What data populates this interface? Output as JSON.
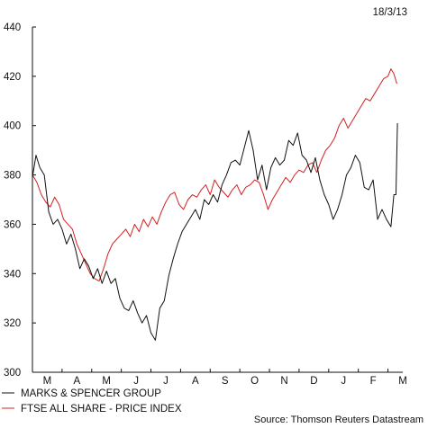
{
  "chart_data": {
    "type": "line",
    "date_label": "18/3/13",
    "source": "Source: Thomson Reuters Datastream",
    "ylim": [
      300,
      440
    ],
    "yticks": [
      300,
      320,
      340,
      360,
      380,
      400,
      420,
      440
    ],
    "xlim": [
      0,
      12.5
    ],
    "months": [
      "M",
      "A",
      "M",
      "J",
      "J",
      "A",
      "S",
      "O",
      "N",
      "D",
      "J",
      "F",
      "M"
    ],
    "grid": false,
    "legend_position": "bottom-left",
    "series": [
      {
        "name": "MARKS & SPENCER GROUP",
        "color": "#111111",
        "points": [
          [
            0.0,
            379
          ],
          [
            0.12,
            388
          ],
          [
            0.25,
            383
          ],
          [
            0.4,
            380
          ],
          [
            0.55,
            365
          ],
          [
            0.7,
            360
          ],
          [
            0.85,
            362
          ],
          [
            1.0,
            358
          ],
          [
            1.15,
            352
          ],
          [
            1.3,
            356
          ],
          [
            1.45,
            350
          ],
          [
            1.6,
            342
          ],
          [
            1.75,
            346
          ],
          [
            1.9,
            343
          ],
          [
            2.05,
            338
          ],
          [
            2.2,
            342
          ],
          [
            2.35,
            336
          ],
          [
            2.5,
            341
          ],
          [
            2.65,
            336
          ],
          [
            2.8,
            338
          ],
          [
            2.95,
            330
          ],
          [
            3.1,
            326
          ],
          [
            3.25,
            325
          ],
          [
            3.4,
            329
          ],
          [
            3.55,
            324
          ],
          [
            3.7,
            320
          ],
          [
            3.85,
            323
          ],
          [
            4.0,
            316
          ],
          [
            4.15,
            313
          ],
          [
            4.3,
            326
          ],
          [
            4.45,
            329
          ],
          [
            4.6,
            339
          ],
          [
            4.75,
            346
          ],
          [
            4.9,
            352
          ],
          [
            5.05,
            357
          ],
          [
            5.2,
            360
          ],
          [
            5.35,
            363
          ],
          [
            5.5,
            366
          ],
          [
            5.65,
            362
          ],
          [
            5.8,
            370
          ],
          [
            5.95,
            368
          ],
          [
            6.1,
            372
          ],
          [
            6.25,
            369
          ],
          [
            6.4,
            376
          ],
          [
            6.55,
            380
          ],
          [
            6.7,
            385
          ],
          [
            6.85,
            386
          ],
          [
            7.0,
            384
          ],
          [
            7.15,
            391
          ],
          [
            7.3,
            398
          ],
          [
            7.45,
            390
          ],
          [
            7.6,
            378
          ],
          [
            7.75,
            384
          ],
          [
            7.9,
            374
          ],
          [
            8.05,
            383
          ],
          [
            8.2,
            387
          ],
          [
            8.35,
            384
          ],
          [
            8.5,
            386
          ],
          [
            8.65,
            394
          ],
          [
            8.8,
            392
          ],
          [
            8.95,
            397
          ],
          [
            9.1,
            388
          ],
          [
            9.25,
            386
          ],
          [
            9.4,
            381
          ],
          [
            9.55,
            387
          ],
          [
            9.7,
            378
          ],
          [
            9.85,
            372
          ],
          [
            10.0,
            368
          ],
          [
            10.15,
            362
          ],
          [
            10.3,
            366
          ],
          [
            10.45,
            372
          ],
          [
            10.6,
            380
          ],
          [
            10.75,
            383
          ],
          [
            10.9,
            388
          ],
          [
            11.05,
            385
          ],
          [
            11.2,
            375
          ],
          [
            11.35,
            374
          ],
          [
            11.5,
            378
          ],
          [
            11.65,
            362
          ],
          [
            11.8,
            366
          ],
          [
            11.95,
            362
          ],
          [
            12.1,
            359
          ],
          [
            12.2,
            372
          ],
          [
            12.27,
            372
          ],
          [
            12.32,
            401
          ]
        ]
      },
      {
        "name": "FTSE ALL SHARE - PRICE INDEX",
        "color": "#d42020",
        "points": [
          [
            0.0,
            380
          ],
          [
            0.15,
            377
          ],
          [
            0.3,
            372
          ],
          [
            0.45,
            369
          ],
          [
            0.6,
            367
          ],
          [
            0.75,
            371
          ],
          [
            0.9,
            368
          ],
          [
            1.05,
            362
          ],
          [
            1.2,
            360
          ],
          [
            1.35,
            358
          ],
          [
            1.5,
            352
          ],
          [
            1.65,
            348
          ],
          [
            1.8,
            344
          ],
          [
            1.95,
            340
          ],
          [
            2.1,
            338
          ],
          [
            2.25,
            337
          ],
          [
            2.4,
            342
          ],
          [
            2.55,
            348
          ],
          [
            2.7,
            352
          ],
          [
            2.85,
            354
          ],
          [
            3.0,
            356
          ],
          [
            3.15,
            358
          ],
          [
            3.3,
            355
          ],
          [
            3.45,
            360
          ],
          [
            3.6,
            357
          ],
          [
            3.75,
            362
          ],
          [
            3.9,
            359
          ],
          [
            4.05,
            363
          ],
          [
            4.2,
            360
          ],
          [
            4.35,
            365
          ],
          [
            4.5,
            369
          ],
          [
            4.65,
            372
          ],
          [
            4.8,
            373
          ],
          [
            4.95,
            368
          ],
          [
            5.1,
            366
          ],
          [
            5.25,
            370
          ],
          [
            5.4,
            372
          ],
          [
            5.55,
            371
          ],
          [
            5.7,
            374
          ],
          [
            5.85,
            376
          ],
          [
            6.0,
            372
          ],
          [
            6.15,
            378
          ],
          [
            6.3,
            375
          ],
          [
            6.45,
            373
          ],
          [
            6.6,
            371
          ],
          [
            6.75,
            374
          ],
          [
            6.9,
            376
          ],
          [
            7.05,
            372
          ],
          [
            7.2,
            375
          ],
          [
            7.35,
            376
          ],
          [
            7.5,
            378
          ],
          [
            7.65,
            377
          ],
          [
            7.8,
            372
          ],
          [
            7.95,
            366
          ],
          [
            8.1,
            370
          ],
          [
            8.25,
            373
          ],
          [
            8.4,
            376
          ],
          [
            8.55,
            379
          ],
          [
            8.7,
            377
          ],
          [
            8.85,
            380
          ],
          [
            9.0,
            382
          ],
          [
            9.15,
            381
          ],
          [
            9.3,
            384
          ],
          [
            9.45,
            385
          ],
          [
            9.6,
            381
          ],
          [
            9.75,
            386
          ],
          [
            9.9,
            390
          ],
          [
            10.05,
            392
          ],
          [
            10.2,
            395
          ],
          [
            10.35,
            400
          ],
          [
            10.5,
            403
          ],
          [
            10.65,
            399
          ],
          [
            10.8,
            402
          ],
          [
            10.95,
            405
          ],
          [
            11.1,
            408
          ],
          [
            11.25,
            411
          ],
          [
            11.4,
            410
          ],
          [
            11.55,
            413
          ],
          [
            11.7,
            416
          ],
          [
            11.85,
            419
          ],
          [
            12.0,
            420
          ],
          [
            12.1,
            423
          ],
          [
            12.2,
            421
          ],
          [
            12.3,
            417
          ]
        ]
      }
    ]
  }
}
